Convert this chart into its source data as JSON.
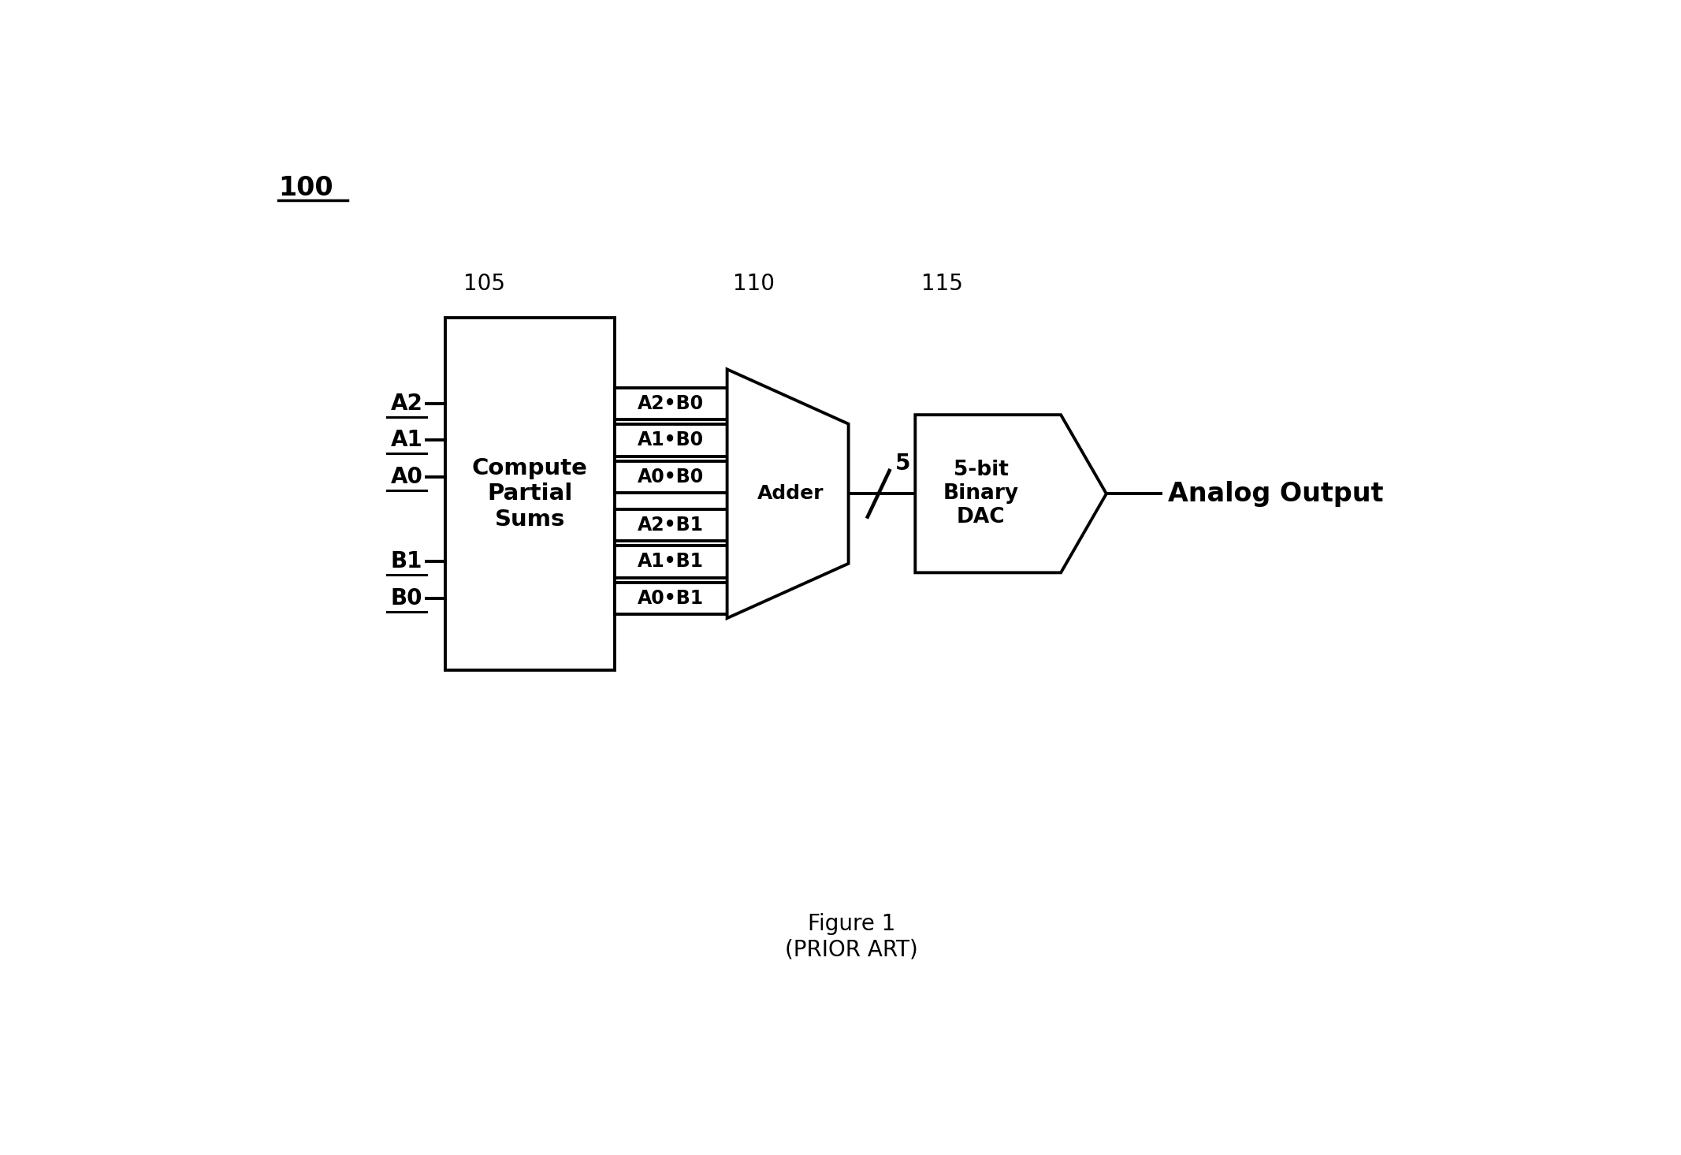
{
  "bg_color": "#ffffff",
  "fig_label": "100",
  "block_105_label": "Compute\nPartial\nSums",
  "block_105_ref": "105",
  "block_110_label": "Adder",
  "block_110_ref": "110",
  "block_115_label": "5-bit\nBinary\nDAC",
  "block_115_ref": "115",
  "input_signals_A": [
    "A2",
    "A1",
    "A0"
  ],
  "input_signals_B": [
    "B1",
    "B0"
  ],
  "output_signals_top": [
    "A2•B0",
    "A1•B0",
    "A0•B0"
  ],
  "output_signals_bot": [
    "A2•B1",
    "A1•B1",
    "A0•B1"
  ],
  "bus_label": "5",
  "analog_output_label": "Analog Output",
  "figure_caption": "Figure 1\n(PRIOR ART)",
  "lw": 2.8
}
